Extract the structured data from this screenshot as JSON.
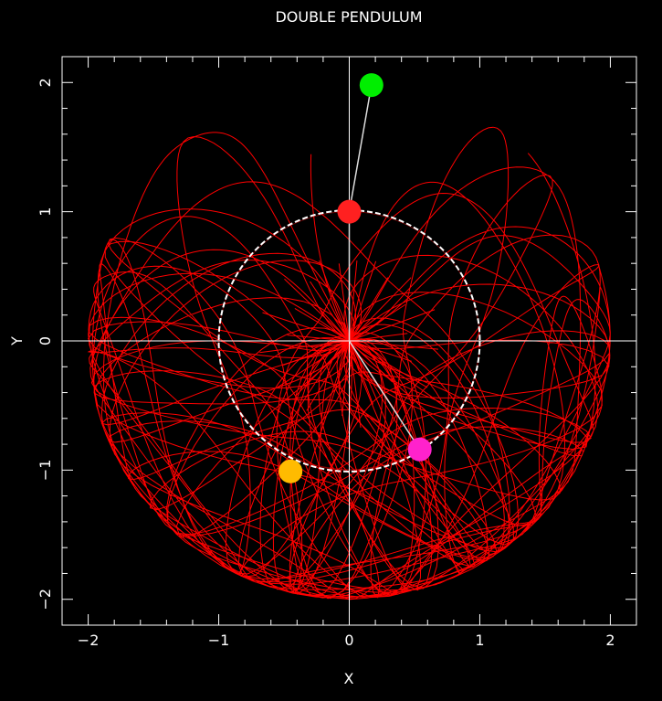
{
  "chart_data": {
    "type": "scatter",
    "title": "DOUBLE PENDULUM",
    "xlabel": "X",
    "ylabel": "Y",
    "xlim": [
      -2.2,
      2.2
    ],
    "ylim": [
      -2.2,
      2.2
    ],
    "x_ticks": [
      -2,
      -1,
      0,
      1,
      2
    ],
    "y_ticks": [
      -2,
      -1,
      0,
      1,
      2
    ],
    "grid": false,
    "trace_color": "#ff0000",
    "background": "#000000",
    "axis_color": "#ffffff",
    "unit_circle": {
      "center": [
        0,
        0
      ],
      "radius": 1,
      "style": "dashed",
      "color": "#ffffff"
    },
    "series": [
      {
        "points": [
          {
            "x": 0.0,
            "y": 1.0
          },
          {
            "x": 0.17,
            "y": 1.98
          }
        ],
        "colors": [
          "#ff2020",
          "#00ee00"
        ]
      },
      {
        "points": [
          {
            "x": 0.0,
            "y": 0.0
          },
          {
            "x": 0.54,
            "y": -0.84
          }
        ],
        "colors": [
          "#ff2020",
          "#ff22cc"
        ]
      },
      {
        "points": [
          {
            "x": -0.45,
            "y": -1.01
          }
        ],
        "colors": [
          "#ffbb00"
        ]
      }
    ]
  }
}
